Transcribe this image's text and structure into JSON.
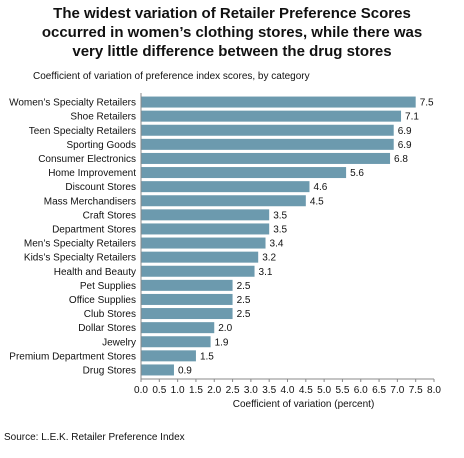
{
  "title_lines": [
    "The widest variation of Retailer Preference Scores",
    "occurred in women’s clothing stores, while there was",
    "very little difference between the drug stores"
  ],
  "subtitle": "Coefficient of variation of preference index scores, by category",
  "source": "Source: L.E.K. Retailer Preference Index",
  "colors": {
    "bar": "#6c9aae",
    "grid": "#888888"
  },
  "chart_data": {
    "type": "bar",
    "orientation": "horizontal",
    "categories": [
      "Women’s Specialty Retailers",
      "Shoe Retailers",
      "Teen Specialty Retailers",
      "Sporting Goods",
      "Consumer Electronics",
      "Home Improvement",
      "Discount Stores",
      "Mass Merchandisers",
      "Craft Stores",
      "Department Stores",
      "Men’s Specialty Retailers",
      "Kids’s Specialty Retailers",
      "Health and Beauty",
      "Pet Supplies",
      "Office Supplies",
      "Club Stores",
      "Dollar Stores",
      "Jewelry",
      "Premium Department Stores",
      "Drug Stores"
    ],
    "values": [
      7.5,
      7.1,
      6.9,
      6.9,
      6.8,
      5.6,
      4.6,
      4.5,
      3.5,
      3.5,
      3.4,
      3.2,
      3.1,
      2.5,
      2.5,
      2.5,
      2.0,
      1.9,
      1.5,
      0.9
    ],
    "value_labels": [
      "7.5",
      "7.1",
      "6.9",
      "6.9",
      "6.8",
      "5.6",
      "4.6",
      "4.5",
      "3.5",
      "3.5",
      "3.4",
      "3.2",
      "3.1",
      "2.5",
      "2.5",
      "2.5",
      "2.0",
      "1.9",
      "1.5",
      "0.9"
    ],
    "xlabel": "Coefficient of variation (percent)",
    "ylabel": "",
    "xlim": [
      0,
      8
    ],
    "xticks": [
      "0.0",
      "0.5",
      "1.0",
      "1.5",
      "2.0",
      "2.5",
      "3.0",
      "3.5",
      "4.0",
      "4.5",
      "5.0",
      "5.5",
      "6.0",
      "6.5",
      "7.0",
      "7.5",
      "8.0"
    ],
    "grid": false,
    "legend": "none"
  }
}
